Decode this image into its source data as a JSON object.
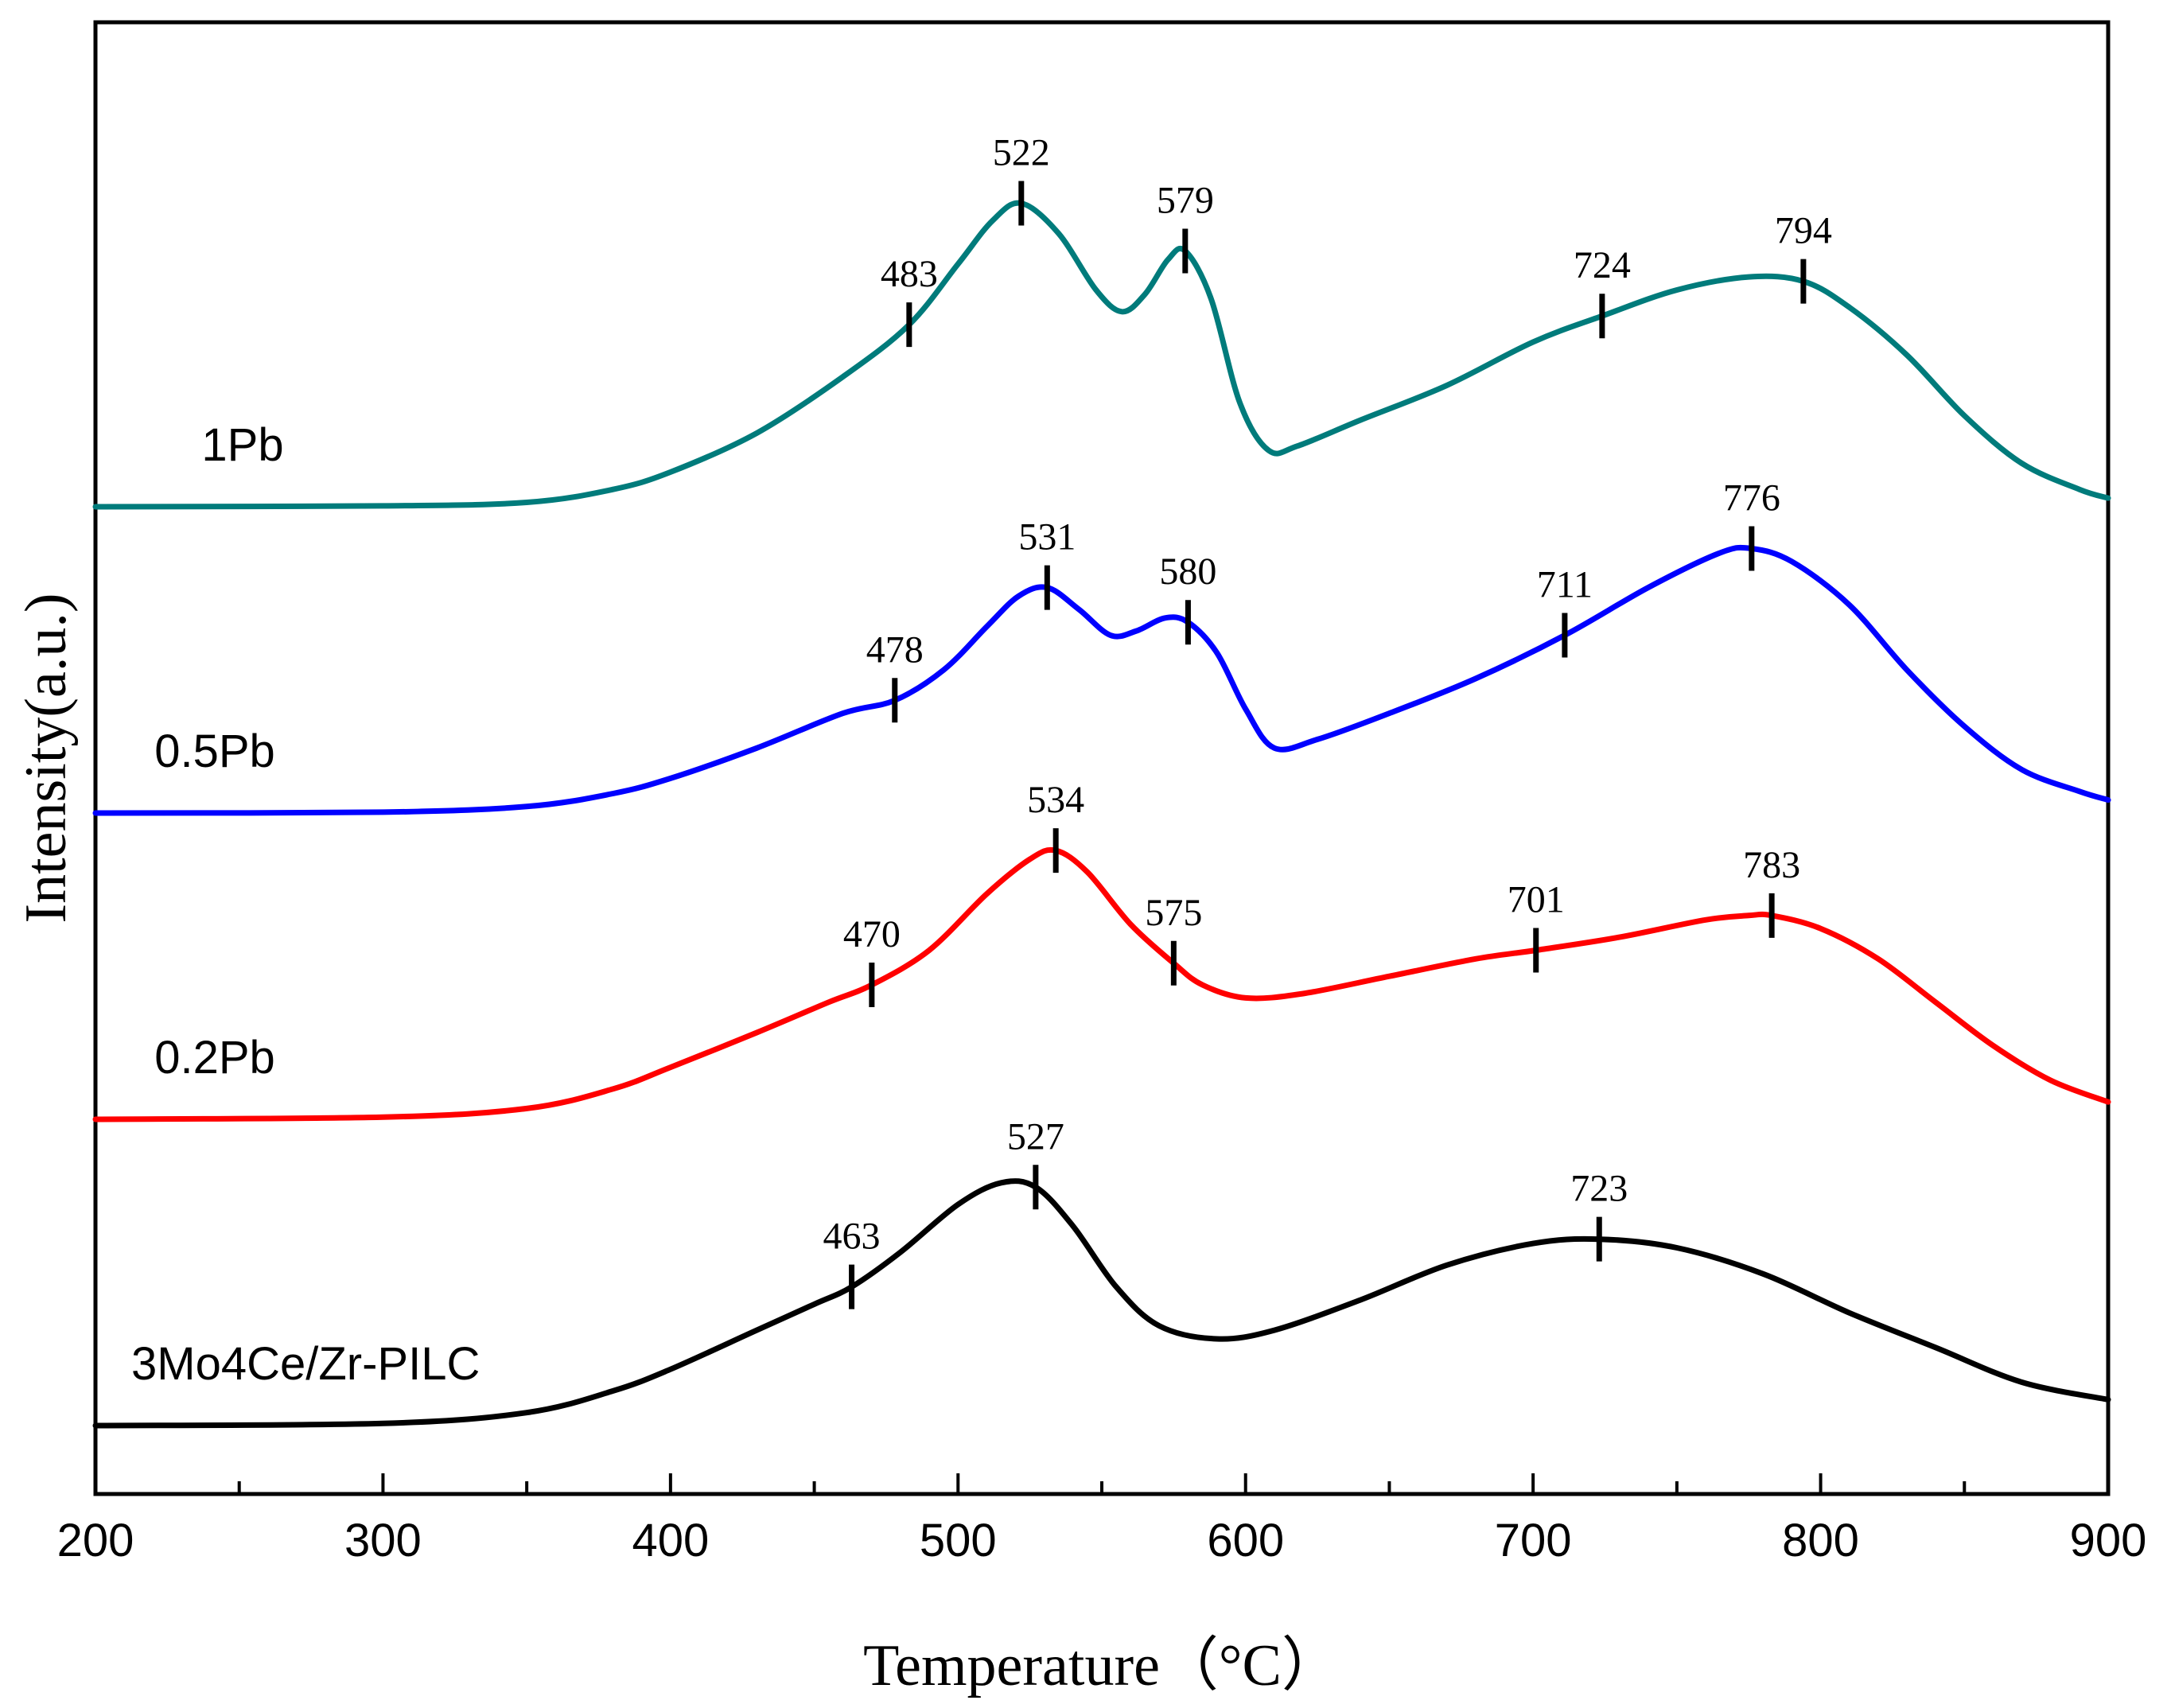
{
  "chart_data": {
    "type": "line",
    "title": "",
    "xlabel": "Temperature（°C）",
    "ylabel": "Intensity(a.u.)",
    "xlim": [
      200,
      900
    ],
    "xticks": [
      200,
      300,
      400,
      500,
      600,
      700,
      800,
      900
    ],
    "yticks_shown": false,
    "grid": false,
    "series": [
      {
        "name": "1Pb",
        "color": "#007b7b",
        "offset": 3.0,
        "points": [
          [
            200,
            0
          ],
          [
            300,
            0.002
          ],
          [
            350,
            0.01
          ],
          [
            380,
            0.04
          ],
          [
            400,
            0.08
          ],
          [
            430,
            0.17
          ],
          [
            460,
            0.3
          ],
          [
            483,
            0.42
          ],
          [
            500,
            0.56
          ],
          [
            512,
            0.66
          ],
          [
            522,
            0.7
          ],
          [
            535,
            0.63
          ],
          [
            548,
            0.5
          ],
          [
            557,
            0.45
          ],
          [
            565,
            0.49
          ],
          [
            573,
            0.57
          ],
          [
            579,
            0.59
          ],
          [
            588,
            0.48
          ],
          [
            598,
            0.24
          ],
          [
            608,
            0.13
          ],
          [
            618,
            0.14
          ],
          [
            640,
            0.2
          ],
          [
            670,
            0.28
          ],
          [
            700,
            0.38
          ],
          [
            724,
            0.44
          ],
          [
            750,
            0.5
          ],
          [
            775,
            0.53
          ],
          [
            794,
            0.52
          ],
          [
            810,
            0.46
          ],
          [
            830,
            0.35
          ],
          [
            850,
            0.21
          ],
          [
            870,
            0.1
          ],
          [
            890,
            0.04
          ],
          [
            900,
            0.02
          ]
        ],
        "peaks": [
          {
            "label": "483",
            "x": 483
          },
          {
            "label": "522",
            "x": 522
          },
          {
            "label": "579",
            "x": 579
          },
          {
            "label": "724",
            "x": 724
          },
          {
            "label": "794",
            "x": 794
          }
        ]
      },
      {
        "name": "0.5Pb",
        "color": "#0000ff",
        "offset": 2.0,
        "points": [
          [
            200,
            0
          ],
          [
            300,
            0.002
          ],
          [
            350,
            0.015
          ],
          [
            380,
            0.045
          ],
          [
            400,
            0.08
          ],
          [
            430,
            0.15
          ],
          [
            460,
            0.23
          ],
          [
            478,
            0.26
          ],
          [
            495,
            0.33
          ],
          [
            510,
            0.43
          ],
          [
            521,
            0.5
          ],
          [
            531,
            0.52
          ],
          [
            542,
            0.47
          ],
          [
            553,
            0.41
          ],
          [
            562,
            0.42
          ],
          [
            572,
            0.45
          ],
          [
            580,
            0.44
          ],
          [
            590,
            0.37
          ],
          [
            600,
            0.24
          ],
          [
            610,
            0.15
          ],
          [
            625,
            0.17
          ],
          [
            650,
            0.23
          ],
          [
            680,
            0.31
          ],
          [
            711,
            0.41
          ],
          [
            740,
            0.52
          ],
          [
            765,
            0.6
          ],
          [
            776,
            0.61
          ],
          [
            790,
            0.58
          ],
          [
            810,
            0.48
          ],
          [
            830,
            0.33
          ],
          [
            850,
            0.2
          ],
          [
            870,
            0.1
          ],
          [
            890,
            0.05
          ],
          [
            900,
            0.03
          ]
        ],
        "peaks": [
          {
            "label": "478",
            "x": 478
          },
          {
            "label": "531",
            "x": 531
          },
          {
            "label": "580",
            "x": 580
          },
          {
            "label": "711",
            "x": 711
          },
          {
            "label": "776",
            "x": 776
          }
        ]
      },
      {
        "name": "0.2Pb",
        "color": "#ff0000",
        "offset": 1.0,
        "points": [
          [
            200,
            0
          ],
          [
            300,
            0.005
          ],
          [
            350,
            0.025
          ],
          [
            380,
            0.07
          ],
          [
            400,
            0.12
          ],
          [
            430,
            0.2
          ],
          [
            455,
            0.27
          ],
          [
            470,
            0.31
          ],
          [
            490,
            0.39
          ],
          [
            510,
            0.52
          ],
          [
            525,
            0.6
          ],
          [
            534,
            0.62
          ],
          [
            545,
            0.57
          ],
          [
            560,
            0.45
          ],
          [
            575,
            0.36
          ],
          [
            585,
            0.31
          ],
          [
            600,
            0.28
          ],
          [
            620,
            0.29
          ],
          [
            650,
            0.33
          ],
          [
            680,
            0.37
          ],
          [
            701,
            0.39
          ],
          [
            730,
            0.42
          ],
          [
            760,
            0.46
          ],
          [
            775,
            0.47
          ],
          [
            783,
            0.47
          ],
          [
            800,
            0.44
          ],
          [
            820,
            0.37
          ],
          [
            840,
            0.27
          ],
          [
            860,
            0.17
          ],
          [
            880,
            0.09
          ],
          [
            900,
            0.04
          ]
        ],
        "peaks": [
          {
            "label": "470",
            "x": 470
          },
          {
            "label": "534",
            "x": 534
          },
          {
            "label": "575",
            "x": 575
          },
          {
            "label": "701",
            "x": 701
          },
          {
            "label": "783",
            "x": 783
          }
        ]
      },
      {
        "name": "3Mo4Ce/Zr-PILC",
        "color": "#000000",
        "offset": 0.0,
        "points": [
          [
            200,
            0
          ],
          [
            300,
            0.005
          ],
          [
            350,
            0.03
          ],
          [
            380,
            0.08
          ],
          [
            400,
            0.13
          ],
          [
            430,
            0.22
          ],
          [
            450,
            0.28
          ],
          [
            463,
            0.32
          ],
          [
            480,
            0.4
          ],
          [
            500,
            0.51
          ],
          [
            515,
            0.56
          ],
          [
            527,
            0.55
          ],
          [
            540,
            0.46
          ],
          [
            555,
            0.32
          ],
          [
            570,
            0.23
          ],
          [
            590,
            0.2
          ],
          [
            610,
            0.22
          ],
          [
            640,
            0.29
          ],
          [
            670,
            0.37
          ],
          [
            700,
            0.42
          ],
          [
            723,
            0.43
          ],
          [
            750,
            0.41
          ],
          [
            780,
            0.35
          ],
          [
            810,
            0.26
          ],
          [
            840,
            0.18
          ],
          [
            870,
            0.1
          ],
          [
            900,
            0.06
          ]
        ],
        "peaks": [
          {
            "label": "463",
            "x": 463
          },
          {
            "label": "527",
            "x": 527
          },
          {
            "label": "723",
            "x": 723
          }
        ]
      }
    ]
  }
}
